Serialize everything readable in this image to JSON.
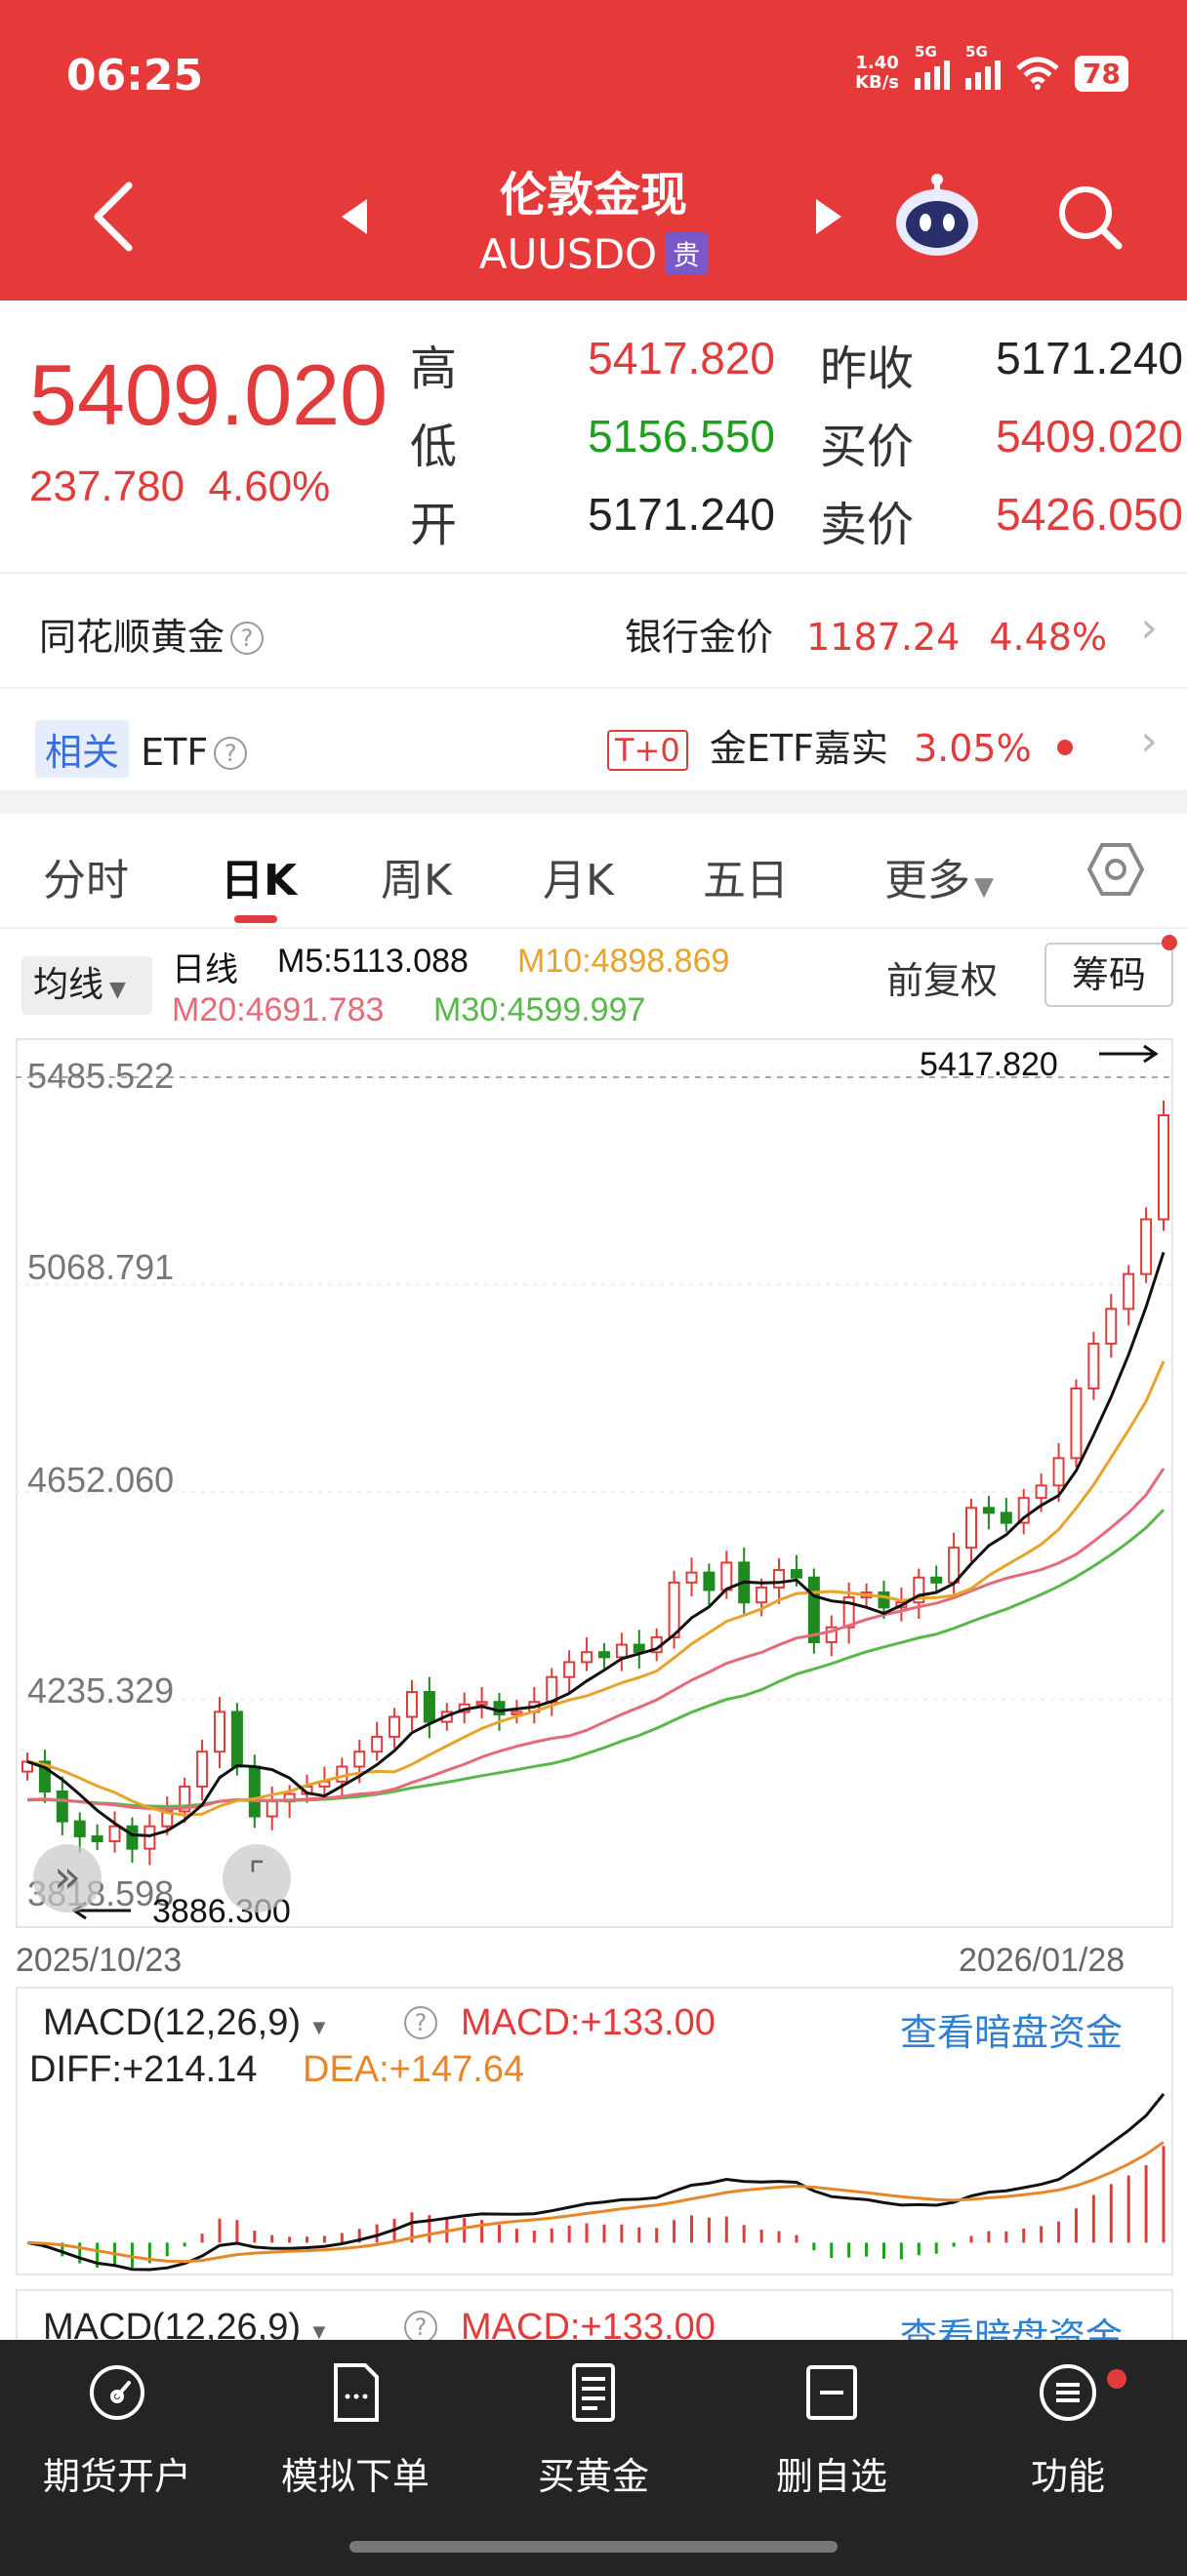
{
  "status": {
    "time": "06:25",
    "netspeed_val": "1.40",
    "netspeed_unit": "KB/s",
    "sig1": "5G",
    "sig2": "5G",
    "battery": "78"
  },
  "header": {
    "title": "伦敦金现",
    "code": "AUUSDO",
    "tag": "贵"
  },
  "quote": {
    "price": "5409.020",
    "change": "237.780",
    "change_pct": "4.60%",
    "high_label": "高",
    "high": "5417.820",
    "low_label": "低",
    "low": "5156.550",
    "open_label": "开",
    "open": "5171.240",
    "prev_label": "昨收",
    "prev": "5171.240",
    "bid_label": "买价",
    "bid": "5409.020",
    "ask_label": "卖价",
    "ask": "5426.050"
  },
  "rows": {
    "ths_gold": "同花顺黄金",
    "bank_label": "银行金价",
    "bank_price": "1187.24",
    "bank_pct": "4.48%",
    "related_tag": "相关",
    "etf": "ETF",
    "t0": "T+0",
    "etf_name": "金ETF嘉实",
    "etf_pct": "3.05%"
  },
  "tabs": [
    "分时",
    "日K",
    "周K",
    "月K",
    "五日",
    "更多"
  ],
  "ma": {
    "button": "均线",
    "kind": "日线",
    "m5": "M5:5113.088",
    "m10": "M10:4898.869",
    "m20": "M20:4691.783",
    "m30": "M30:4599.997",
    "adjust": "前复权",
    "chips": "筹码"
  },
  "chart_data": {
    "type": "candlestick",
    "y_axis": [
      "5485.522",
      "5068.791",
      "4652.060",
      "4235.329",
      "3818.598"
    ],
    "max_label": "5417.820",
    "min_label": "3886.300",
    "x_start": "2025/10/23",
    "x_end": "2026/01/28",
    "closes": [
      4110,
      4050,
      3990,
      3960,
      3950,
      3980,
      3935,
      3980,
      4010,
      4060,
      4130,
      4210,
      4100,
      4000,
      4030,
      4045,
      4060,
      4070,
      4100,
      4130,
      4160,
      4200,
      4250,
      4190,
      4210,
      4225,
      4230,
      4205,
      4210,
      4230,
      4280,
      4310,
      4330,
      4320,
      4345,
      4330,
      4360,
      4470,
      4490,
      4455,
      4510,
      4430,
      4460,
      4495,
      4480,
      4350,
      4380,
      4440,
      4450,
      4420,
      4430,
      4480,
      4470,
      4540,
      4620,
      4610,
      4590,
      4640,
      4665,
      4720,
      4860,
      4950,
      5020,
      5090,
      5200,
      5409
    ],
    "colors": {
      "up": "#e23b3b",
      "down": "#1f8a1f",
      "m5": "#111111",
      "m10": "#e8a32a",
      "m20": "#e56a7a",
      "m30": "#58b84a"
    }
  },
  "macd": {
    "label": "MACD(12,26,9)",
    "macd": "MACD:+133.00",
    "diff": "DIFF:+214.14",
    "dea": "DEA:+147.64",
    "link": "查看暗盘资金"
  },
  "nav": [
    "期货开户",
    "模拟下单",
    "买黄金",
    "删自选",
    "功能"
  ]
}
